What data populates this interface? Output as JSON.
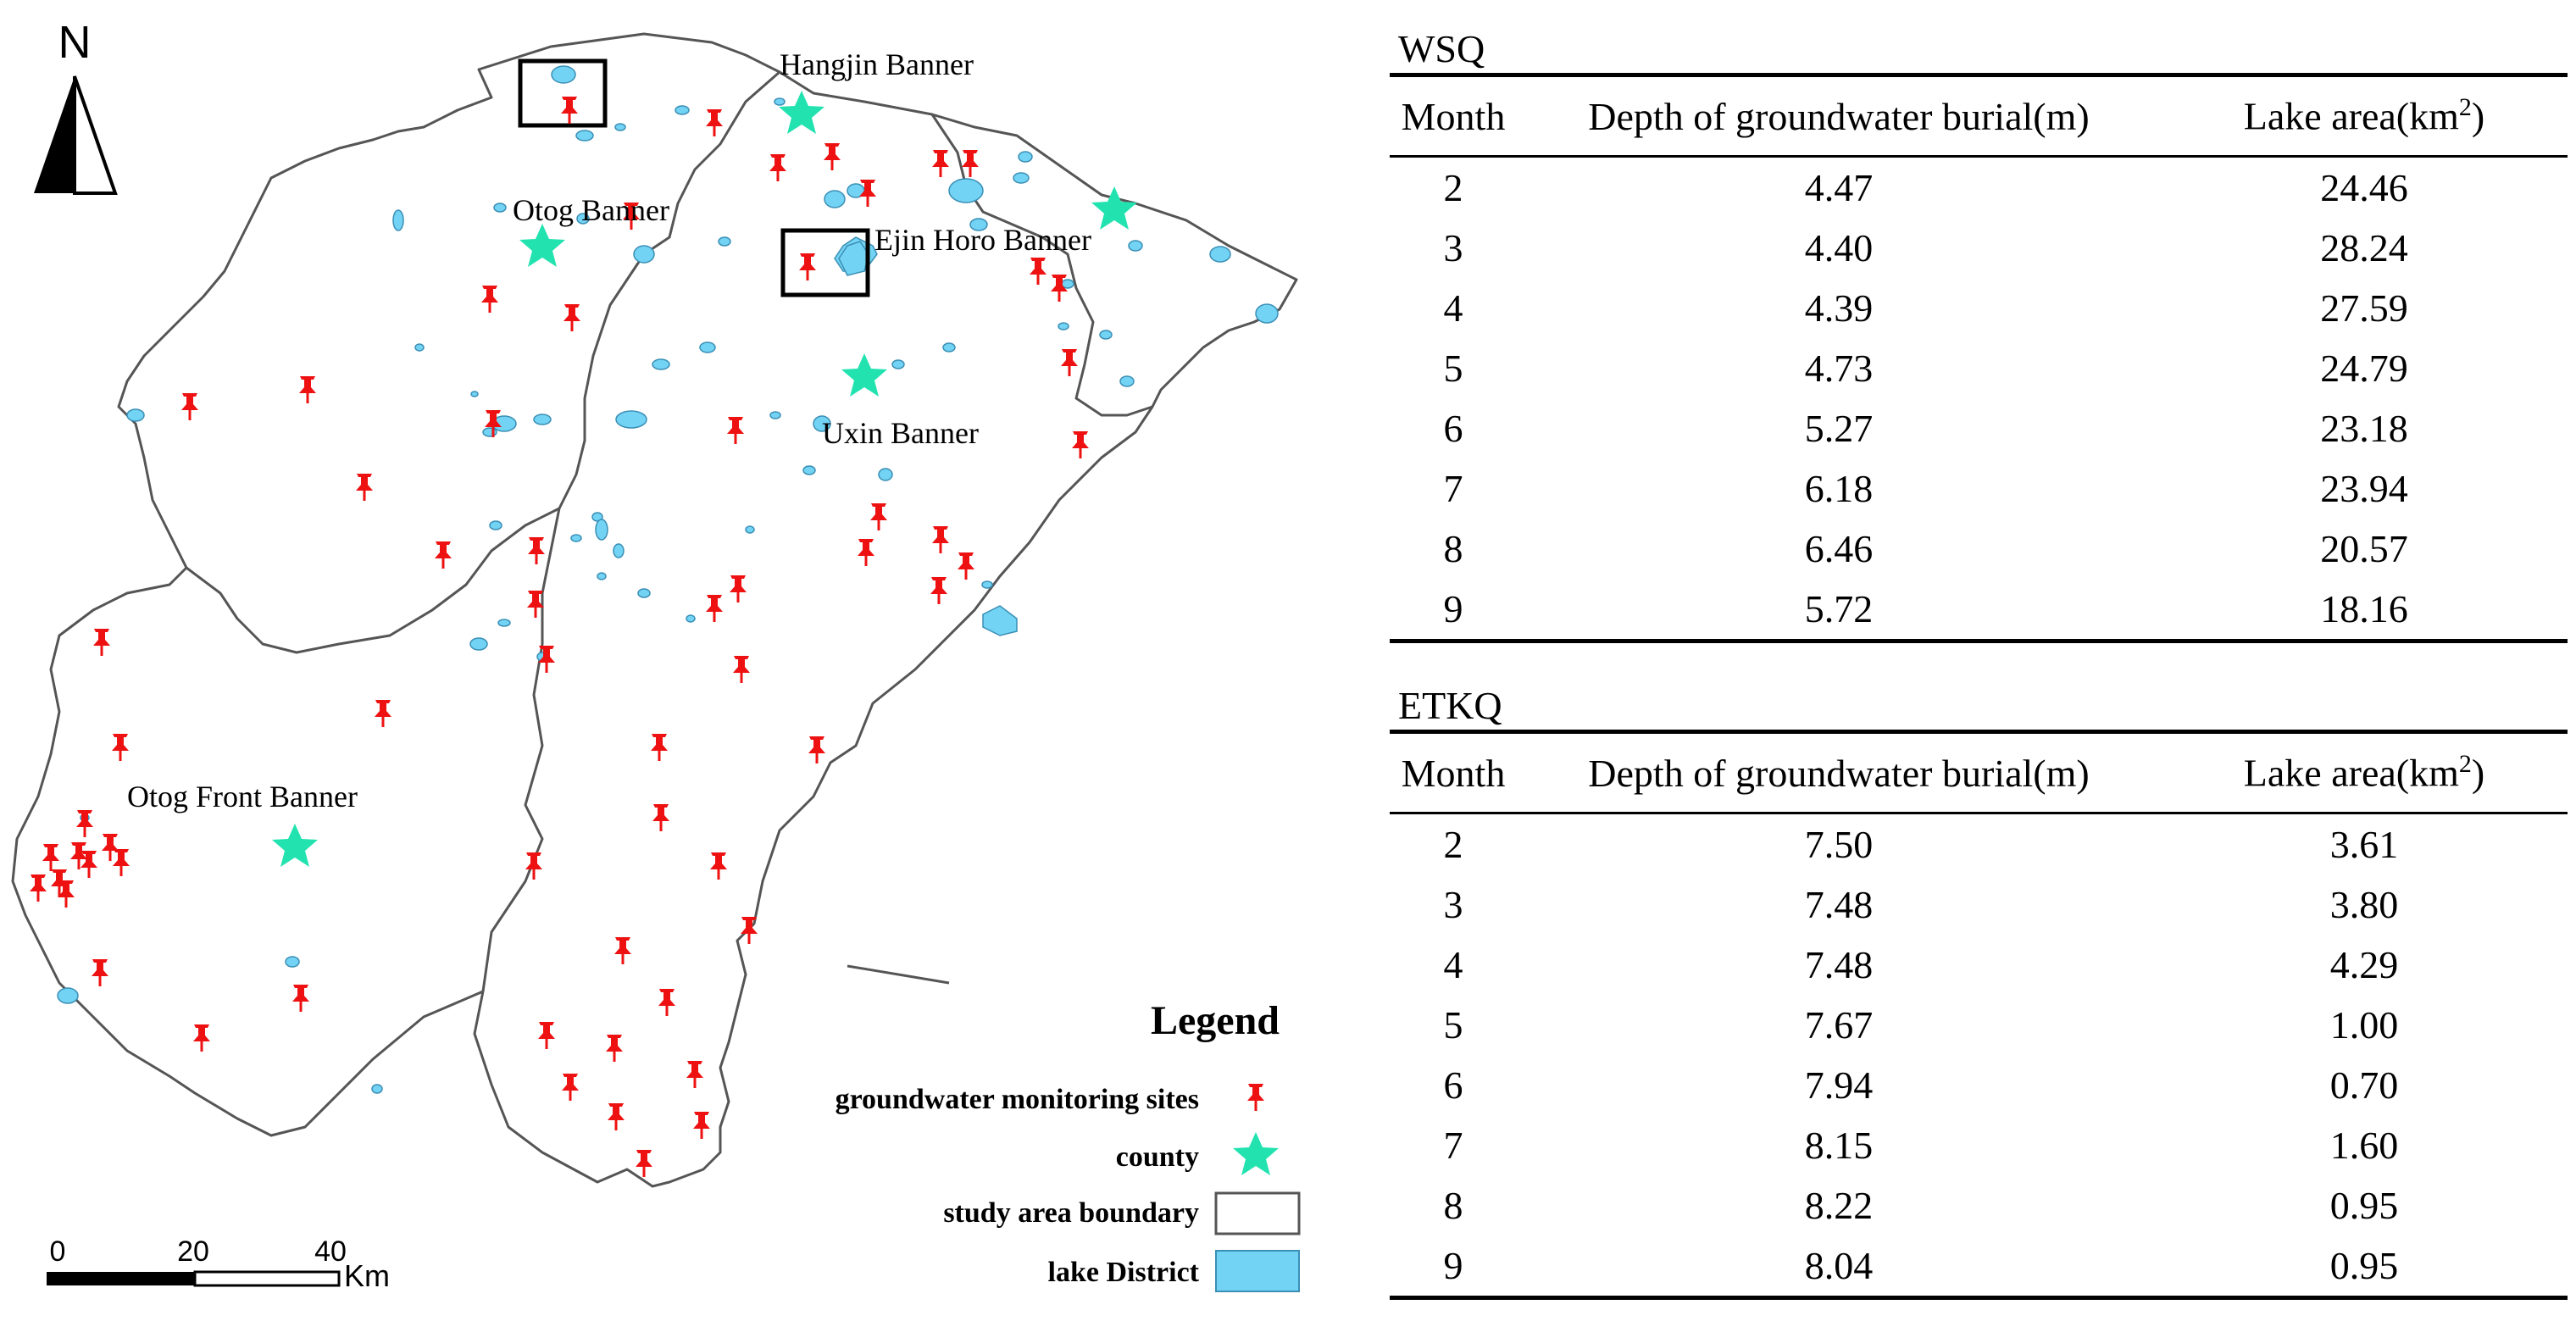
{
  "map": {
    "north_label": "N",
    "labels": {
      "hangjin": "Hangjin Banner",
      "otog": "Otog Banner",
      "ejin": "Ejin Horo Banner",
      "uxin": "Uxin Banner",
      "otog_front": "Otog Front Banner"
    },
    "legend": {
      "title": "Legend",
      "items": [
        {
          "label": "groundwater monitoring sites",
          "symbol": "pin-icon"
        },
        {
          "label": "county",
          "symbol": "star-icon"
        },
        {
          "label": "study area boundary",
          "symbol": "rect-outline"
        },
        {
          "label": "lake District",
          "symbol": "rect-fill"
        }
      ]
    },
    "scale": {
      "ticks": [
        "0",
        "20",
        "40"
      ],
      "unit": "Km"
    },
    "colors": {
      "pin": "#ee1111",
      "county": "#22e3b0",
      "lake": "#73d3f4",
      "boundary": "#555555"
    }
  },
  "tables": [
    {
      "title": "WSQ",
      "headers": [
        "Month",
        "Depth of groundwater burial(m)",
        "Lake area(km",
        "2",
        ")"
      ],
      "rows": [
        [
          "2",
          "4.47",
          "24.46"
        ],
        [
          "3",
          "4.40",
          "28.24"
        ],
        [
          "4",
          "4.39",
          "27.59"
        ],
        [
          "5",
          "4.73",
          "24.79"
        ],
        [
          "6",
          "5.27",
          "23.18"
        ],
        [
          "7",
          "6.18",
          "23.94"
        ],
        [
          "8",
          "6.46",
          "20.57"
        ],
        [
          "9",
          "5.72",
          "18.16"
        ]
      ]
    },
    {
      "title": "ETKQ",
      "headers": [
        "Month",
        "Depth of groundwater burial(m)",
        "Lake area(km",
        "2",
        ")"
      ],
      "rows": [
        [
          "2",
          "7.50",
          "3.61"
        ],
        [
          "3",
          "7.48",
          "3.80"
        ],
        [
          "4",
          "7.48",
          "4.29"
        ],
        [
          "5",
          "7.67",
          "1.00"
        ],
        [
          "6",
          "7.94",
          "0.70"
        ],
        [
          "7",
          "8.15",
          "1.60"
        ],
        [
          "8",
          "8.22",
          "0.95"
        ],
        [
          "9",
          "8.04",
          "0.95"
        ]
      ]
    }
  ]
}
